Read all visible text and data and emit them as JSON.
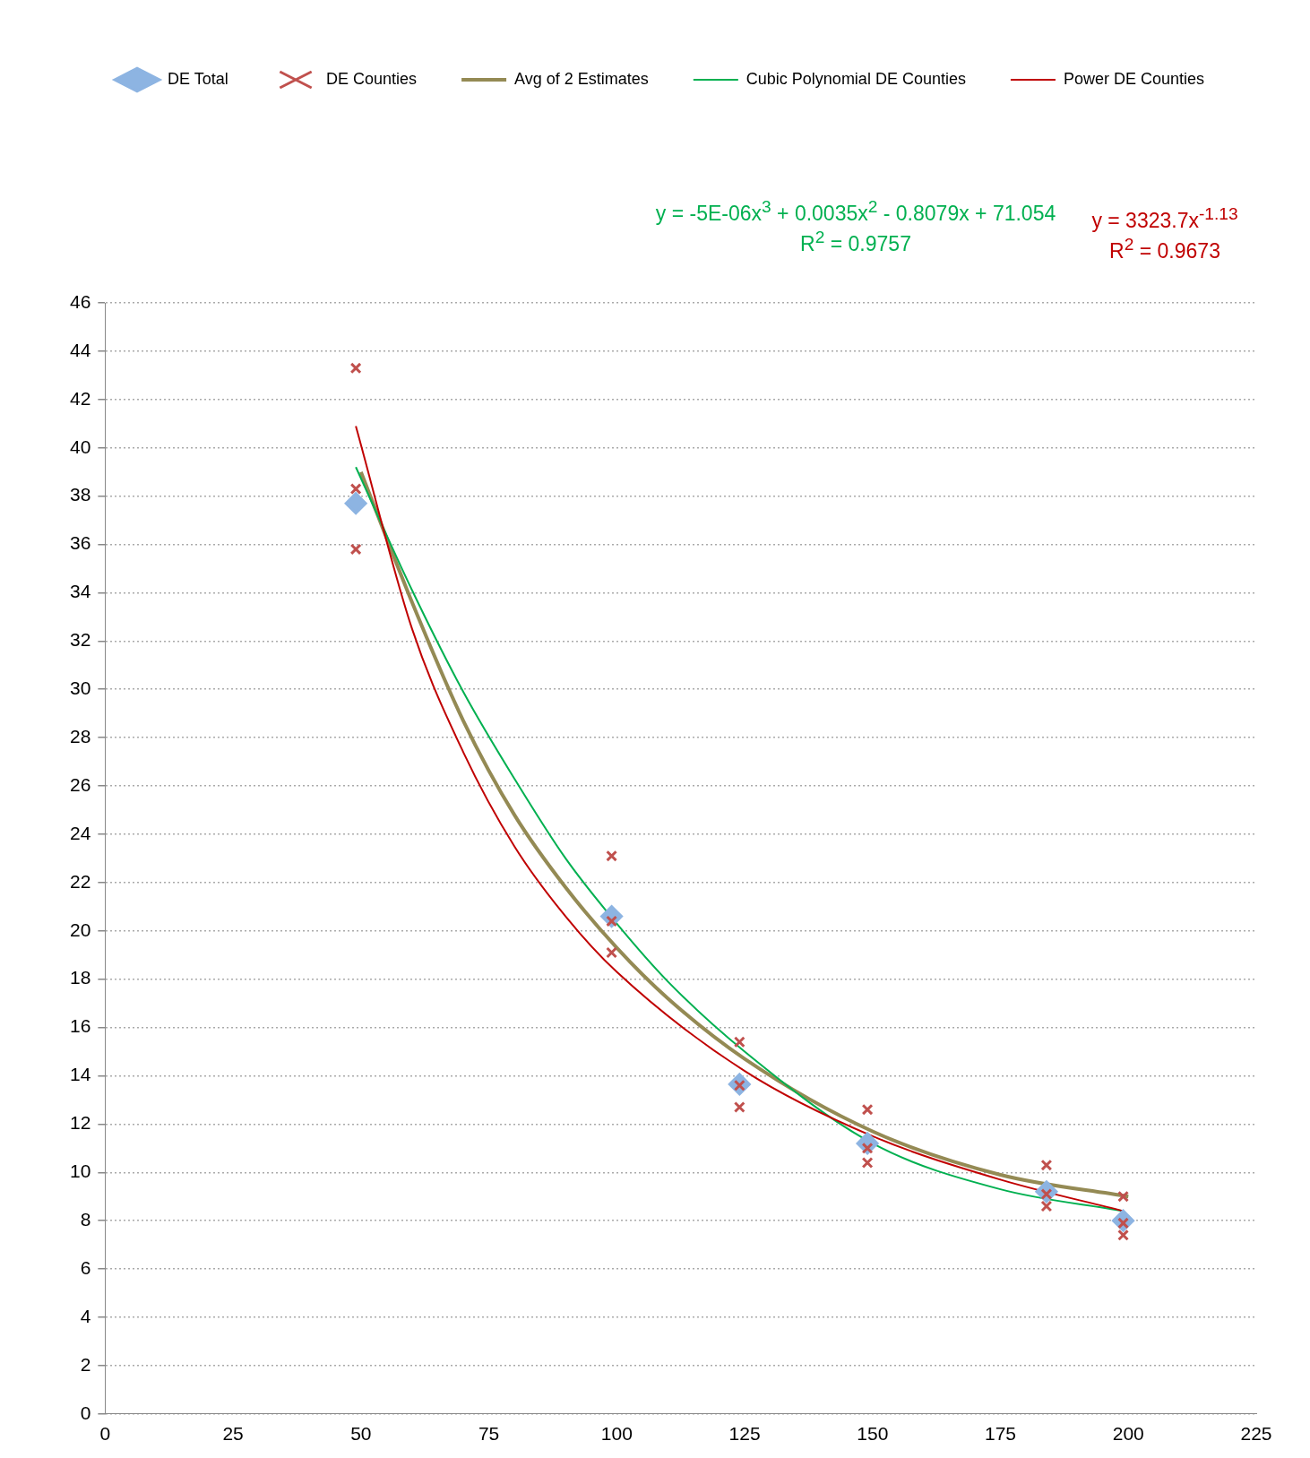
{
  "chart_data": {
    "type": "scatter",
    "legend": "top",
    "grid": "y",
    "xlim": [
      0,
      225
    ],
    "xticks": [
      0,
      25,
      50,
      75,
      100,
      125,
      150,
      175,
      200,
      225
    ],
    "ylim": [
      0,
      46
    ],
    "yticks": [
      0,
      2,
      4,
      6,
      8,
      10,
      12,
      14,
      16,
      18,
      20,
      22,
      24,
      26,
      28,
      30,
      32,
      34,
      36,
      38,
      40,
      42,
      44,
      46
    ],
    "annotations": [
      "y = -5E-06x$^{3}$ + 0.0035x$^{2}$ - 0.8079x + 71.054",
      "R$^{2}$ = 0.9757",
      "y = 3323.7x$^{-1.13}$",
      "R$^{2}$ = 0.9673"
    ],
    "series": [
      {
        "name": "DE Total",
        "type": "scatter",
        "marker": "diamond",
        "color": "#8db4e2",
        "x": [
          49,
          99,
          124,
          149,
          184,
          199
        ],
        "values": [
          37.7,
          20.6,
          13.65,
          11.2,
          9.2,
          8.0
        ]
      },
      {
        "name": "DE Counties",
        "type": "scatter",
        "marker": "cross",
        "color": "#c0504d",
        "x": [
          49,
          49,
          49,
          99,
          99,
          99,
          124,
          124,
          124,
          149,
          149,
          149,
          184,
          184,
          184,
          199,
          199,
          199
        ],
        "values": [
          43.3,
          38.3,
          35.8,
          23.1,
          20.4,
          19.1,
          15.4,
          13.6,
          12.7,
          12.6,
          11.0,
          10.4,
          10.3,
          9.1,
          8.6,
          9.0,
          7.9,
          7.4
        ]
      },
      {
        "name": "Avg of 2 Estimates",
        "type": "line",
        "marker": "none",
        "color": "#948a54",
        "x": [
          50,
          60,
          70,
          80,
          90,
          100,
          110,
          125,
          150,
          175,
          200
        ],
        "values": [
          39.0,
          33.6,
          28.7,
          24.8,
          21.8,
          19.3,
          17.2,
          14.7,
          11.7,
          9.9,
          9.0
        ]
      },
      {
        "name": "Cubic Polynomial DE Counties",
        "type": "line",
        "marker": "none",
        "color": "#00b050",
        "x": [
          49,
          60,
          70,
          80,
          90,
          100,
          110,
          125,
          150,
          175,
          199
        ],
        "values": [
          39.2,
          34.1,
          29.9,
          26.3,
          23.0,
          20.3,
          17.9,
          15.0,
          11.2,
          9.3,
          8.4
        ]
      },
      {
        "name": "Power DE Counties",
        "type": "line",
        "marker": "none",
        "color": "#c00000",
        "x": [
          49,
          60,
          70,
          80,
          90,
          100,
          125,
          150,
          175,
          199
        ],
        "values": [
          40.9,
          32.5,
          27.4,
          23.5,
          20.6,
          18.3,
          14.2,
          11.5,
          9.7,
          8.4
        ]
      }
    ]
  }
}
